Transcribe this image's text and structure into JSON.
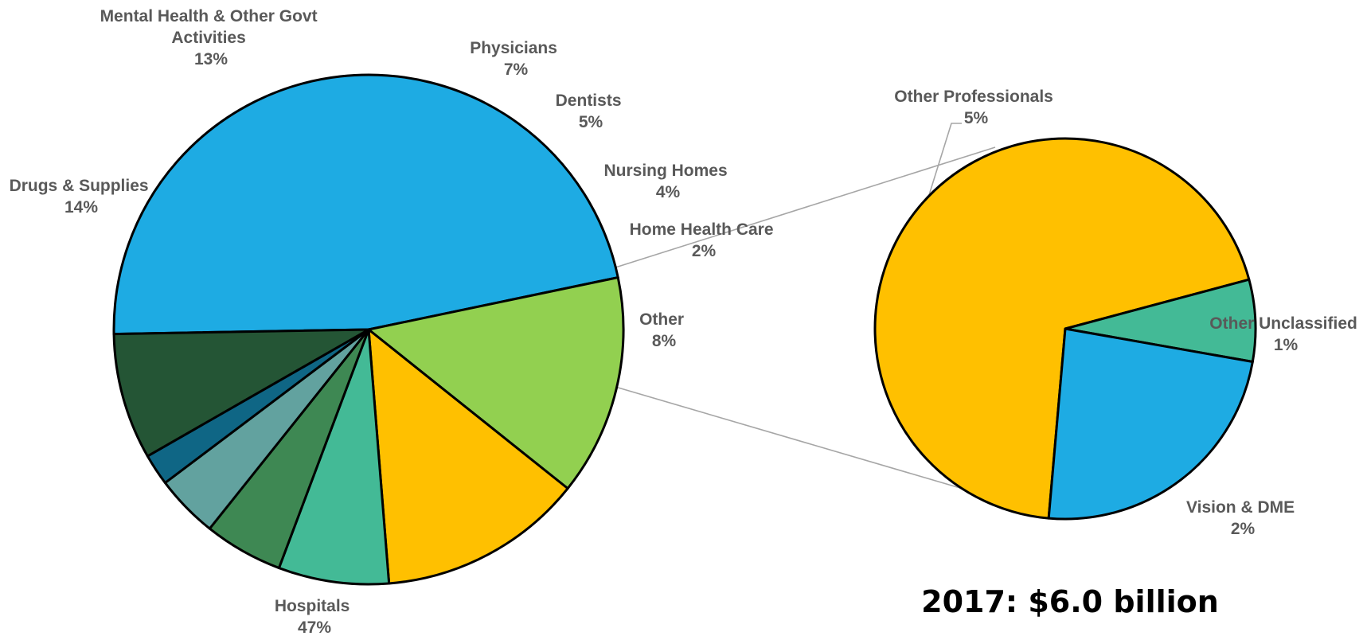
{
  "chart_data": [
    {
      "type": "pie",
      "title": "",
      "slices": [
        {
          "name": "Hospitals",
          "value": 47,
          "label": "47%",
          "color": "#1EABE3"
        },
        {
          "name": "Drugs & Supplies",
          "value": 14,
          "label": "14%",
          "color": "#92D050"
        },
        {
          "name": "Mental Health & Other Govt Activities",
          "name_lines": [
            "Mental Health & Other Govt",
            "Activities"
          ],
          "value": 13,
          "label": "13%",
          "color": "#FFC000"
        },
        {
          "name": "Physicians",
          "value": 7,
          "label": "7%",
          "color": "#43BA96"
        },
        {
          "name": "Dentists",
          "value": 5,
          "label": "5%",
          "color": "#3E8853"
        },
        {
          "name": "Nursing Homes",
          "value": 4,
          "label": "4%",
          "color": "#62A29F"
        },
        {
          "name": "Home Health Care",
          "value": 2,
          "label": "2%",
          "color": "#0F6685"
        },
        {
          "name": "Other",
          "value": 8,
          "label": "8%",
          "color": "#245535"
        }
      ],
      "exploded_slice": "Other"
    },
    {
      "type": "pie",
      "title": "",
      "slices": [
        {
          "name": "Other Professionals",
          "value": 5,
          "label": "5%",
          "color": "#FFC000"
        },
        {
          "name": "Other Unclassified",
          "value": 0.5,
          "label": "1%",
          "color": "#43BA96"
        },
        {
          "name": "Vision & DME",
          "value": 1.7,
          "label": "2%",
          "color": "#1EABE3"
        }
      ]
    }
  ],
  "total_label": "2017: $6.0 billion"
}
